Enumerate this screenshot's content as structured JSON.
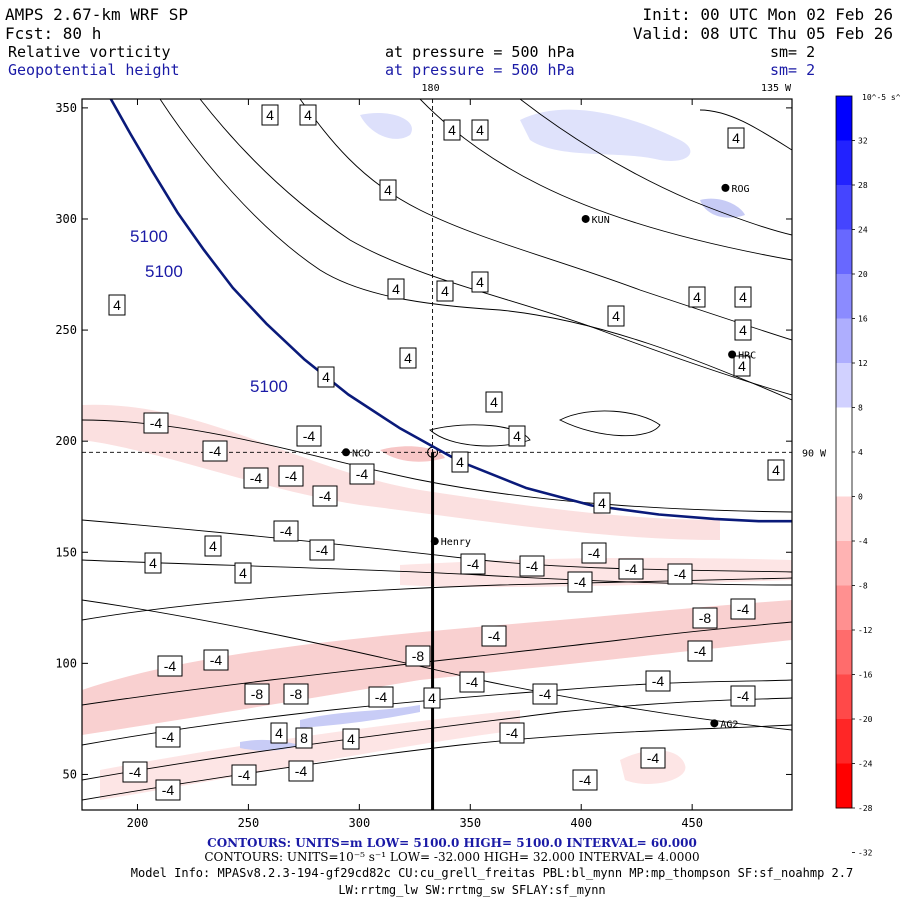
{
  "header": {
    "model": "AMPS 2.67-km WRF SP",
    "forecast": "Fcst:   80 h",
    "init": "Init: 00 UTC Mon 02 Feb 26",
    "valid": "Valid: 08 UTC Thu 05 Feb 26",
    "field1_name": "Relative vorticity",
    "field1_level": "at pressure =  500 hPa",
    "field1_smooth": "sm= 2",
    "field2_name": "Geopotential height",
    "field2_level": "at pressure =  500 hPa",
    "field2_smooth": "sm= 2"
  },
  "colors": {
    "field1": "#000000",
    "field2": "#1a1aa6",
    "height_contour": "#0a1a7a",
    "frame": "#000000"
  },
  "chart_data": {
    "type": "contour-map",
    "xlim": [
      175,
      495
    ],
    "ylim": [
      34,
      354
    ],
    "xticks": [
      200,
      250,
      300,
      350,
      400,
      450
    ],
    "yticks": [
      50,
      100,
      150,
      200,
      250,
      300,
      350
    ],
    "top_labels": [
      "180",
      "135 W"
    ],
    "right_labels": [
      "90 W"
    ],
    "height_contour": {
      "value": "5100",
      "labels": [
        "5100",
        "5100",
        "5100"
      ],
      "points": [
        [
          188,
          354
        ],
        [
          197,
          338
        ],
        [
          207,
          321
        ],
        [
          218,
          303
        ],
        [
          230,
          286
        ],
        [
          243,
          269
        ],
        [
          258,
          253
        ],
        [
          275,
          237
        ],
        [
          295,
          221
        ],
        [
          318,
          206
        ],
        [
          345,
          191
        ],
        [
          375,
          179
        ],
        [
          405,
          171
        ],
        [
          435,
          167
        ],
        [
          460,
          165
        ],
        [
          480,
          164
        ],
        [
          495,
          164
        ]
      ]
    },
    "vorticity_labels": [
      "4",
      "-4",
      "8",
      "-8"
    ],
    "stations": [
      {
        "name": "ROG",
        "x": 465,
        "y": 314
      },
      {
        "name": "KUN",
        "x": 402,
        "y": 300
      },
      {
        "name": "HRC",
        "x": 468,
        "y": 239
      },
      {
        "name": "NCO",
        "x": 294,
        "y": 195
      },
      {
        "name": "Henry",
        "x": 334,
        "y": 155
      },
      {
        "name": "AG2",
        "x": 460,
        "y": 73
      }
    ],
    "cross_section": {
      "x": 333,
      "y_top": 195,
      "y_bottom": 34
    },
    "crosshair": {
      "x": 333,
      "y": 195
    },
    "colorbar": {
      "unit": "10^-5 s^-1",
      "labels": [
        "32",
        "28",
        "24",
        "20",
        "16",
        "12",
        "8",
        "4",
        "0",
        "-4",
        "-8",
        "-12",
        "-16",
        "-20",
        "-24",
        "-28",
        "-32"
      ],
      "colors": [
        "#0000ff",
        "#2222ff",
        "#4545ff",
        "#6868ff",
        "#8b8bff",
        "#aeaefe",
        "#d1d1ff",
        "#ffffff",
        "#ffffff",
        "#ffd6d6",
        "#ffb3b3",
        "#ff9090",
        "#ff6c6c",
        "#ff4949",
        "#ff2626",
        "#ff0000"
      ]
    }
  },
  "footer": {
    "contours1": "CONTOURS:  UNITS=m  LOW=  5100.0      HIGH=  5100.0      INTERVAL=  60.000",
    "contours2": "CONTOURS:  UNITS=10⁻⁵ s⁻¹  LOW= -32.000      HIGH=  32.000      INTERVAL=  4.0000",
    "model_info": "Model Info: MPASv8.2.3-194-gf29cd82c CU:cu_grell_freitas PBL:bl_mynn MP:mp_thompson SF:sf_noahmp 2.7",
    "model_info2": "LW:rrtmg_lw SW:rrtmg_sw SFLAY:sf_mynn"
  }
}
